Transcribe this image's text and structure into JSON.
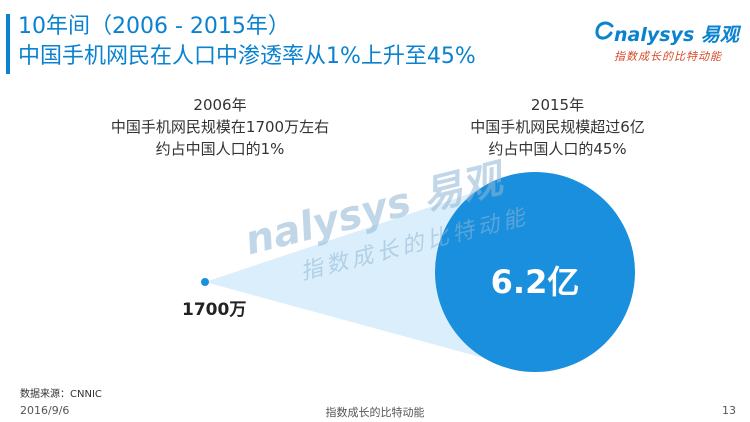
{
  "header": {
    "title_line1": "10年间（2006 - 2015年）",
    "title_line2": "中国手机网民在人口中渗透率从1%上升至45%"
  },
  "logo": {
    "wordmark": "nalysys 易观",
    "tagline": "指数成长的比特动能"
  },
  "points": [
    {
      "year": "2006年",
      "line1": "中国手机网民规模在1700万左右",
      "line2": "约占中国人口的1%",
      "value_label": "1700万",
      "value": 17000000,
      "penetration_percent": 1
    },
    {
      "year": "2015年",
      "line1": "中国手机网民规模超过6亿",
      "line2": "约占中国人口的45%",
      "value_label": "6.2亿",
      "value": 620000000,
      "penetration_percent": 45
    }
  ],
  "watermark": {
    "wordmark": "nalysys 易观",
    "tagline": "指数成长的比特动能"
  },
  "footer": {
    "source": "数据来源：CNNIC",
    "date": "2016/9/6",
    "center": "指数成长的比特动能",
    "page": "13"
  },
  "colors": {
    "accent": "#0a82d0",
    "circle": "#1a8fde",
    "cone": "#dbeefb",
    "tagline": "#d94a2a"
  }
}
